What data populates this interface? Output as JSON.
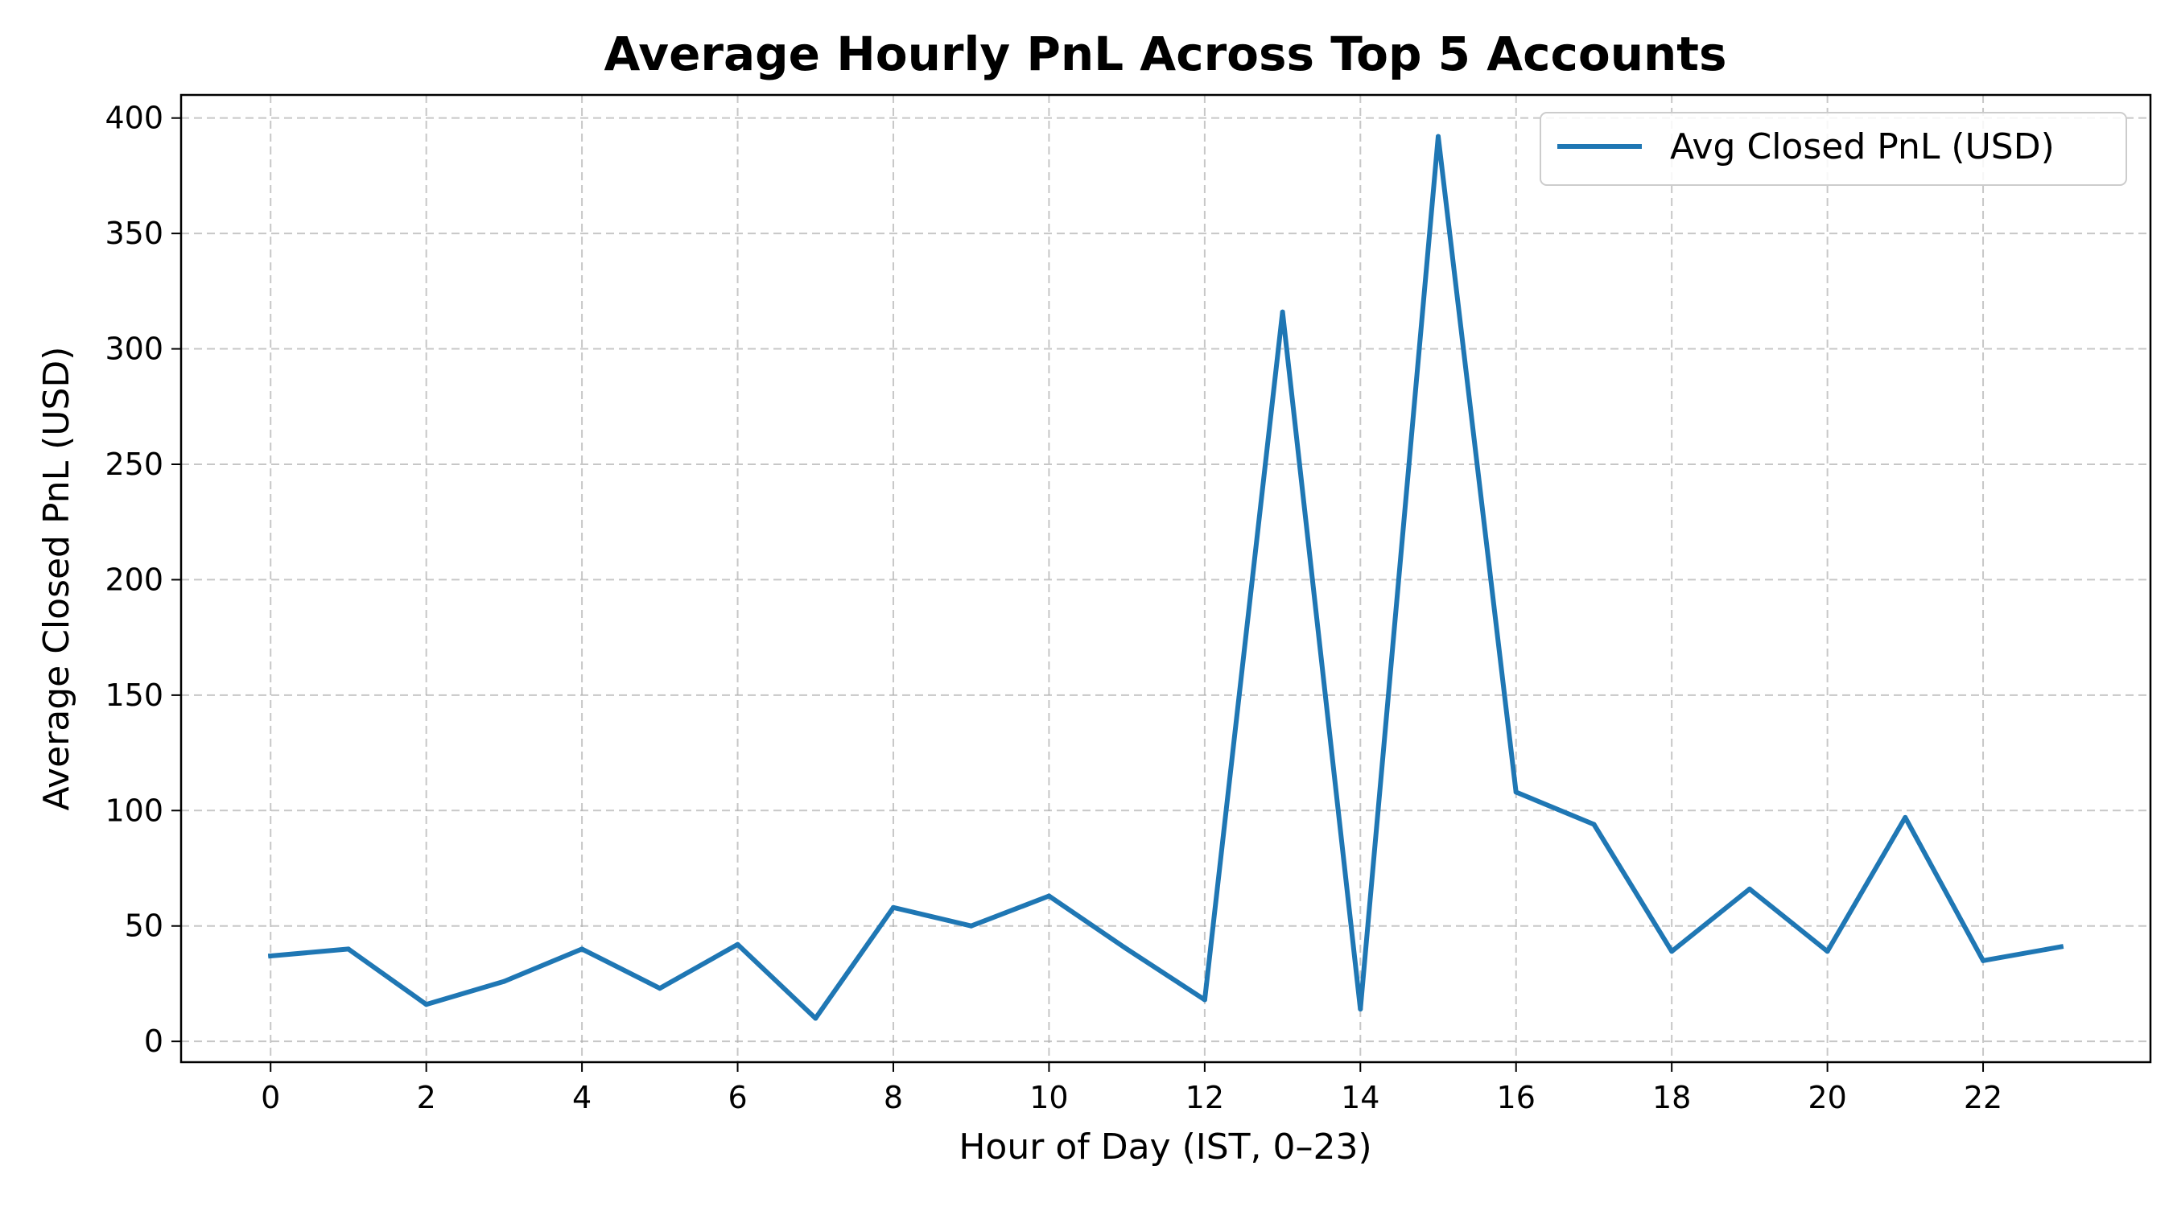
{
  "chart_data": {
    "type": "line",
    "title": "Average Hourly PnL Across Top 5 Accounts",
    "xlabel": "Hour of Day (IST, 0–23)",
    "ylabel": "Average Closed PnL (USD)",
    "x": [
      0,
      1,
      2,
      3,
      4,
      5,
      6,
      7,
      8,
      9,
      10,
      11,
      12,
      13,
      14,
      15,
      16,
      17,
      18,
      19,
      20,
      21,
      22,
      23
    ],
    "series": [
      {
        "name": "Avg Closed PnL (USD)",
        "color": "#1f77b4",
        "values": [
          37,
          40,
          16,
          26,
          40,
          23,
          42,
          10,
          58,
          50,
          63,
          40,
          18,
          316,
          14,
          392,
          108,
          94,
          39,
          66,
          39,
          97,
          35,
          41
        ]
      }
    ],
    "xlim": [
      -1.15,
      24.15
    ],
    "ylim": [
      -9,
      410
    ],
    "xticks": [
      0,
      2,
      4,
      6,
      8,
      10,
      12,
      14,
      16,
      18,
      20,
      22
    ],
    "yticks": [
      0,
      50,
      100,
      150,
      200,
      250,
      300,
      350,
      400
    ],
    "grid": true,
    "legend_position": "top-right"
  }
}
